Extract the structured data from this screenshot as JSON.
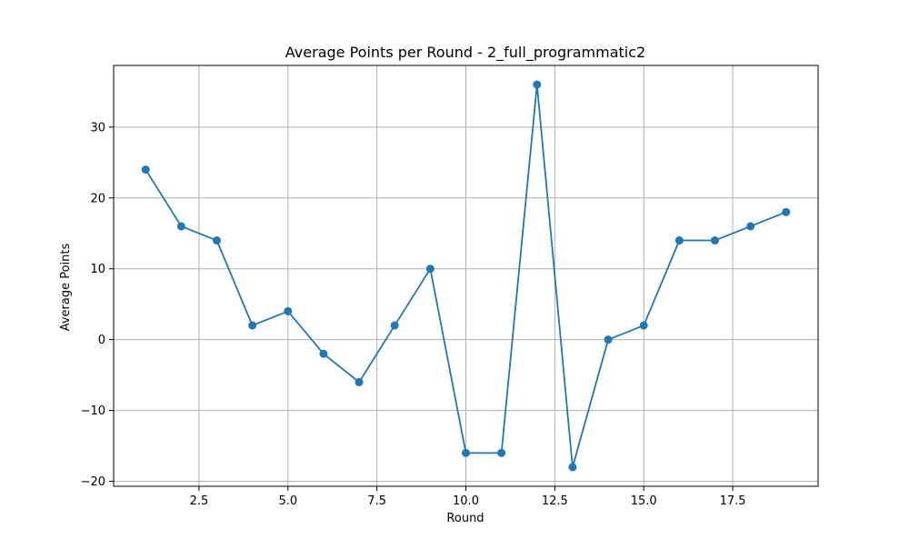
{
  "chart_data": {
    "type": "line",
    "title": "Average Points per Round - 2_full_programmatic2",
    "xlabel": "Round",
    "ylabel": "Average Points",
    "xlim": [
      0.1,
      19.9
    ],
    "ylim": [
      -20.7,
      38.7
    ],
    "x_ticks": [
      2.5,
      5.0,
      7.5,
      10.0,
      12.5,
      15.0,
      17.5
    ],
    "x_tick_labels": [
      "2.5",
      "5.0",
      "7.5",
      "10.0",
      "12.5",
      "15.0",
      "17.5"
    ],
    "y_ticks": [
      -20,
      -10,
      0,
      10,
      20,
      30
    ],
    "y_tick_labels": [
      "−20",
      "−10",
      "0",
      "10",
      "20",
      "30"
    ],
    "grid": true,
    "legend": "none",
    "colors": {
      "series": "#1f77b4",
      "grid": "#b0b0b0",
      "axes": "#000000"
    },
    "series": [
      {
        "x": [
          1,
          2,
          3,
          4,
          5,
          6,
          7,
          8,
          9,
          10,
          11,
          12,
          13,
          14,
          15,
          16,
          17,
          18,
          19
        ],
        "values": [
          24,
          16,
          14,
          2,
          4,
          -2,
          -6,
          2,
          10,
          -16,
          -16,
          36,
          -18,
          0,
          2,
          14,
          14,
          16,
          18
        ],
        "marker": "circle"
      }
    ]
  }
}
